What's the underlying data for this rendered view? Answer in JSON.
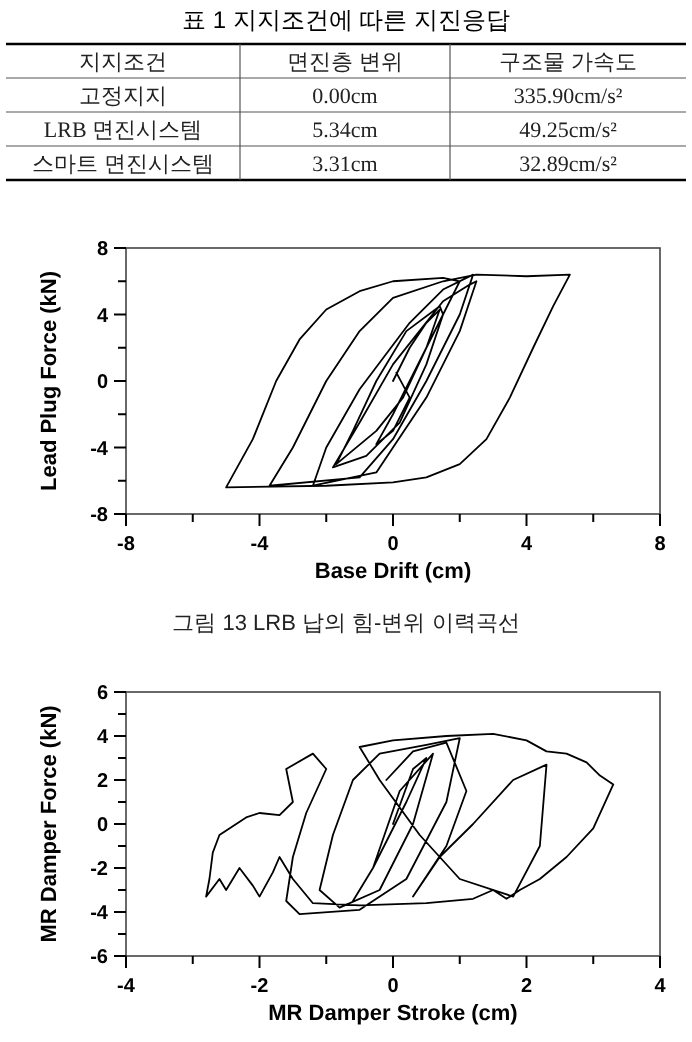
{
  "chart_data": [
    {
      "type": "other",
      "title": "표 1 지지조건에 따른 지진응답",
      "annotations": [
        "지지조건",
        "면진층 변위",
        "구조물 가속도",
        "고정지지",
        "0.00cm",
        "335.90cm/s²",
        "LRB 면진시스템",
        "5.34cm",
        "49.25cm/s²",
        "스마트 면진시스템",
        "3.31cm",
        "32.89cm/s²"
      ]
    },
    {
      "type": "line",
      "xlabel": "Base Drift (cm)",
      "ylabel": "Lead Plug Force (kN)",
      "annotations": [
        "그림 13 LRB 납의 힘-변위 이력곡선"
      ],
      "xlim": [
        -8,
        8
      ],
      "ylim": [
        -8,
        8
      ],
      "xticks": [
        -8,
        {
          "value": -6,
          "label": null
        },
        -4,
        {
          "value": -2,
          "label": null
        },
        0,
        {
          "value": 2,
          "label": null
        },
        4,
        {
          "value": 6,
          "label": null
        },
        8
      ],
      "yticks": [
        -8,
        {
          "value": -6,
          "label": null
        },
        -4,
        {
          "value": -2,
          "label": null
        },
        0,
        {
          "value": 2,
          "label": null
        },
        4,
        {
          "value": 6,
          "label": null
        },
        8
      ],
      "series": [
        {
          "color": "#000000",
          "x": [
            0,
            0.5,
            1,
            1.4,
            1.0,
            0.3,
            -0.5,
            -1.7,
            -1.2,
            -0.5,
            0.4,
            1.4,
            1.5,
            1.0,
            0.2,
            -0.8,
            -1.8,
            -1.0,
            0,
            1.5,
            2.3,
            2.5,
            2.0,
            1.0,
            0,
            -0.5,
            -2.4,
            -2.0,
            -1.0,
            0.5,
            1.5,
            2.4,
            2.0,
            1.0,
            0,
            -1.0,
            -3.7,
            -3.0,
            -2.0,
            -1.0,
            0,
            1.5,
            2.5,
            4.0,
            5.3,
            4.8,
            4.2,
            3.5,
            2.8,
            2.0,
            1.0,
            0,
            -2.0,
            -5.0,
            -4.2,
            -3.5,
            -2.8,
            -2.0,
            -1.0,
            0,
            1.5,
            2.0,
            1.5,
            0.5,
            0,
            -0.5,
            0,
            0.5,
            0.1
          ],
          "values": [
            0,
            2,
            3.5,
            4.3,
            2,
            -1,
            -3,
            -5,
            -3,
            0,
            3,
            4.5,
            4,
            1,
            -2.5,
            -4.5,
            -5.2,
            -2.5,
            1,
            4.8,
            5.8,
            6,
            3,
            -1,
            -4,
            -5.5,
            -6.3,
            -4,
            -0.5,
            3.5,
            5.5,
            6.4,
            4,
            0,
            -3.5,
            -5.8,
            -6.3,
            -4,
            0,
            3,
            5,
            6,
            6.4,
            6.3,
            6.4,
            4.5,
            2,
            -1,
            -3.5,
            -5,
            -5.8,
            -6.1,
            -6.3,
            -6.4,
            -3.5,
            0,
            2.5,
            4.3,
            5.4,
            6,
            6.2,
            6,
            4,
            0,
            -2,
            -3.8,
            -3,
            -1,
            0.5
          ]
        }
      ]
    },
    {
      "type": "line",
      "xlabel": "MR Damper Stroke (cm)",
      "ylabel": "MR Damper Force (kN)",
      "xlim": [
        -4,
        4
      ],
      "ylim": [
        -6,
        6
      ],
      "xticks": [
        -4,
        {
          "value": -3,
          "label": null
        },
        -2,
        {
          "value": -1,
          "label": null
        },
        0,
        {
          "value": 1,
          "label": null
        },
        2,
        {
          "value": 3,
          "label": null
        },
        4
      ],
      "yticks": [
        -6,
        {
          "value": -5,
          "label": null
        },
        -4,
        {
          "value": -3,
          "label": null
        },
        -2,
        {
          "value": -1,
          "label": null
        },
        0,
        {
          "value": 1,
          "label": null
        },
        2,
        {
          "value": 3,
          "label": null
        },
        4,
        {
          "value": 5,
          "label": null
        },
        6
      ],
      "series": [
        {
          "color": "#000000",
          "x": [
            0,
            0.3,
            0.5,
            0.2,
            -0.3,
            -0.6,
            -0.3,
            0.1,
            0.6,
            0.3,
            -0.2,
            -0.8,
            -1.1,
            -0.9,
            -0.6,
            -0.2,
            0.5,
            1.0,
            0.8,
            0.2,
            -0.5,
            -1.4,
            -1.6,
            -1.5,
            -1.3,
            -1.0,
            -1.2,
            -1.6,
            -1.5,
            -1.7,
            -2.0,
            -2.2,
            -2.6,
            -2.7,
            -2.75,
            -2.8,
            -2.6,
            -2.5,
            -2.3,
            -2.1,
            -2.0,
            -1.8,
            -1.7,
            -1.5,
            -1.2,
            -0.5,
            0.5,
            1.2,
            1.5,
            1.7,
            1.9,
            2.2,
            2.6,
            3.0,
            3.3,
            3.1,
            2.9,
            2.6,
            2.3,
            2.0,
            1.5,
            0.8,
            0,
            -0.5,
            -0.2,
            0.4,
            1.0,
            1.8,
            2.2,
            2.3,
            1.8,
            1.2,
            0.7,
            0.3,
            0.8,
            1.1,
            0.8,
            0.3,
            -0.1
          ],
          "values": [
            0,
            2.5,
            3,
            1,
            -2,
            -3.5,
            -2,
            1.5,
            3.2,
            0,
            -3,
            -3.8,
            -3,
            -0.5,
            2,
            3.2,
            3.6,
            3.9,
            1,
            -2.5,
            -3.9,
            -4.1,
            -3.5,
            -1.5,
            0.5,
            2.5,
            3.2,
            2.5,
            1,
            0.4,
            0.5,
            0.3,
            -0.5,
            -1.3,
            -2.5,
            -3.3,
            -2.5,
            -3,
            -2,
            -2.8,
            -3.3,
            -2.2,
            -1.5,
            -2.5,
            -3.6,
            -3.7,
            -3.6,
            -3.4,
            -3,
            -3.4,
            -3,
            -2.5,
            -1.5,
            -0.2,
            1.8,
            2.2,
            2.8,
            3.2,
            3.3,
            3.8,
            4.1,
            4,
            3.8,
            3.5,
            2,
            -0.5,
            -2.5,
            -3.3,
            -1,
            2.7,
            2,
            0,
            -1.5,
            -3.3,
            -1,
            1.5,
            3.7,
            3.3,
            2
          ]
        }
      ]
    }
  ]
}
